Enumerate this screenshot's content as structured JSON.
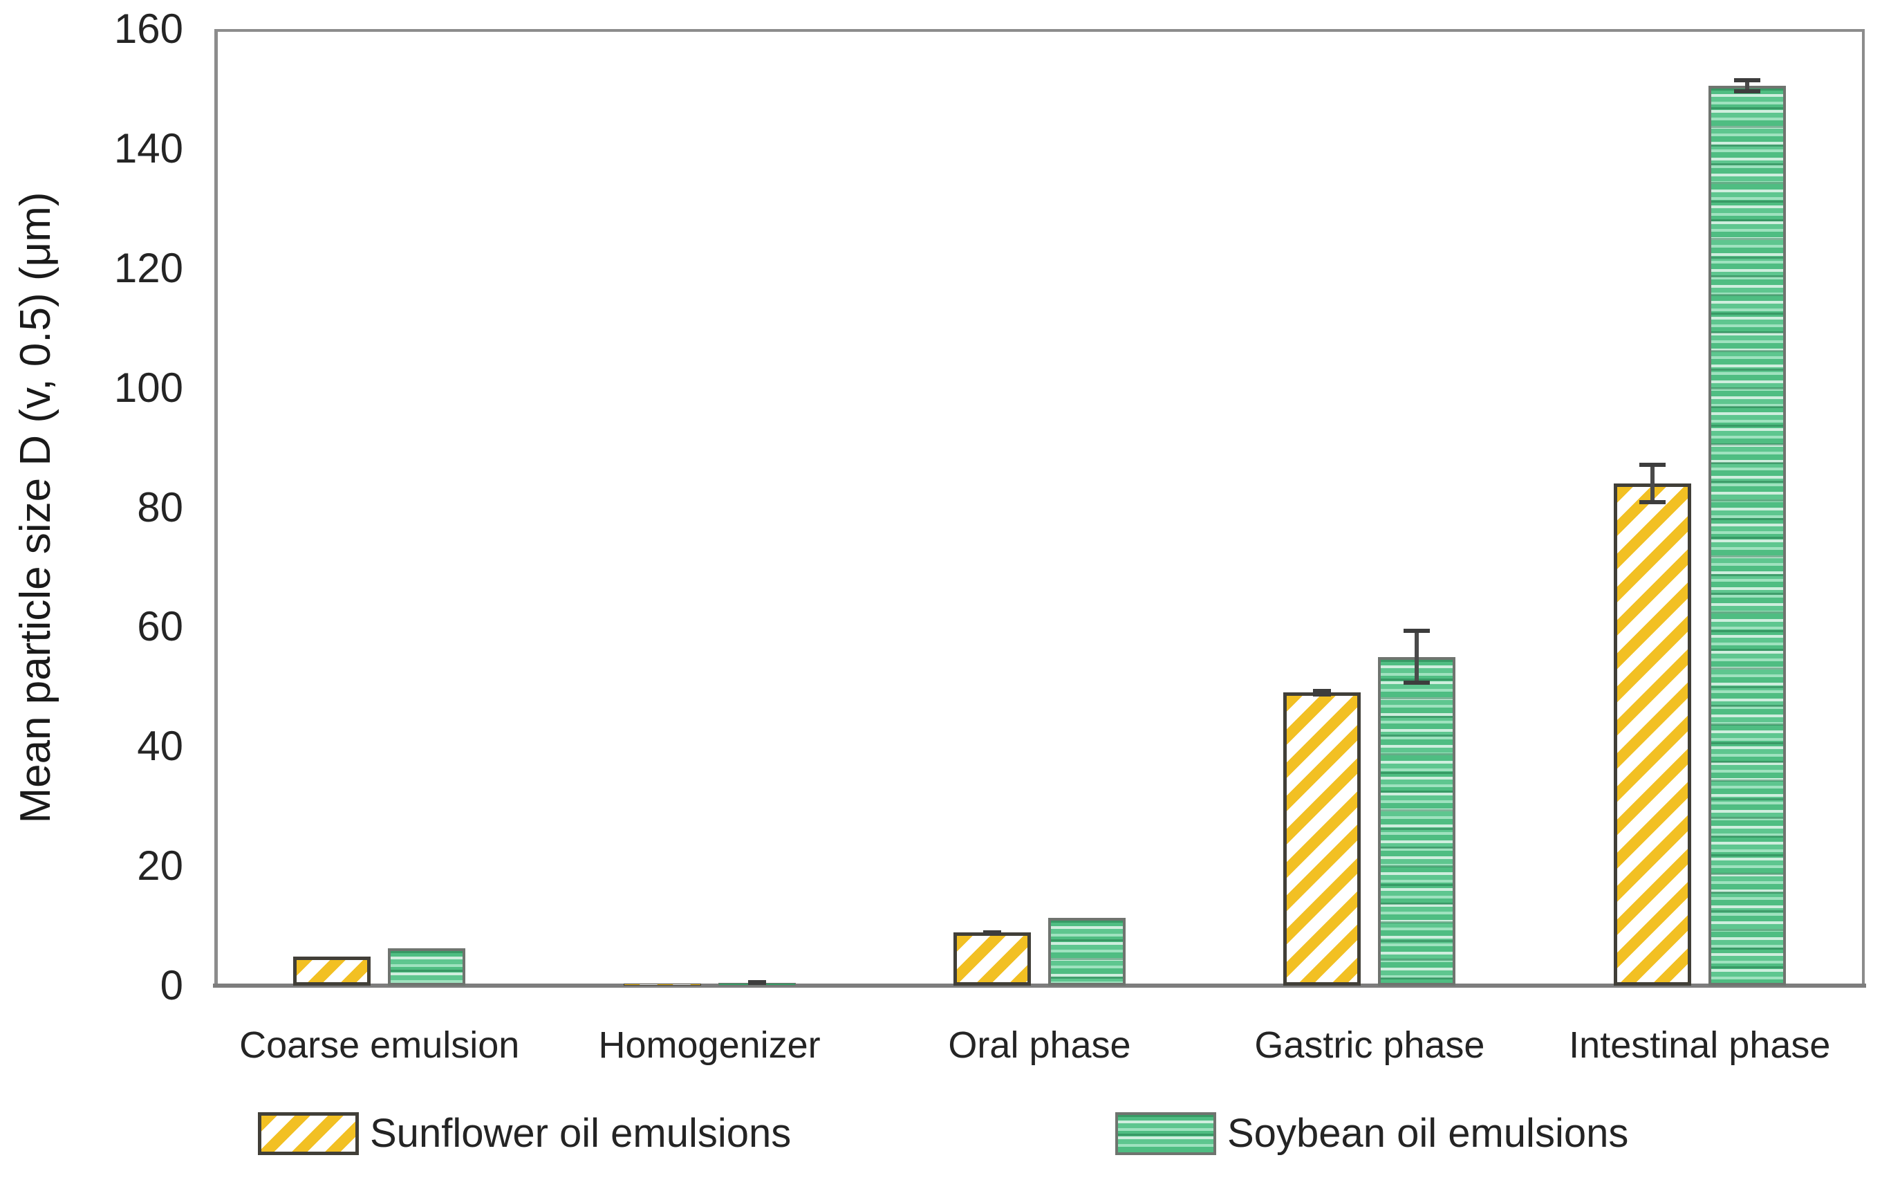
{
  "chart_data": {
    "type": "bar",
    "title": "",
    "xlabel": "",
    "ylabel": "Mean particle size D (v, 0.5) (μm)",
    "ylim": [
      0,
      160
    ],
    "yticks": [
      0,
      20,
      40,
      60,
      80,
      100,
      120,
      140,
      160
    ],
    "grid": false,
    "legend_position": "bottom",
    "categories": [
      "Coarse emulsion",
      "Homogenizer",
      "Oral phase",
      "Gastric phase",
      "Intestinal phase"
    ],
    "series": [
      {
        "name": "Sunflower oil emulsions",
        "pattern": "diagonal-hatch",
        "color": "#F2C023",
        "values": [
          4.9,
          0.3,
          8.9,
          49,
          84
        ],
        "errors": [
          0,
          0,
          0.4,
          0.6,
          3.5
        ]
      },
      {
        "name": "Soybean oil emulsions",
        "pattern": "horizontal-stripes",
        "color": "#4FBD82",
        "values": [
          6.2,
          0.5,
          11.3,
          55,
          150.5
        ],
        "errors": [
          0,
          0.3,
          0,
          4.7,
          1.3
        ]
      }
    ]
  },
  "colors": {
    "frame": "#8C8C8C",
    "axis_text": "#242424",
    "error_bar": "#4A4A4A",
    "sunflower_stripe": "#F2C023",
    "sunflower_border": "#413F38",
    "soybean_fill": "#5EC68F",
    "soybean_light_stripe": "#CFEEDE",
    "soybean_dark_line": "#1B6E42",
    "soybean_border": "#6F746F",
    "background": "#FFFFFF"
  }
}
